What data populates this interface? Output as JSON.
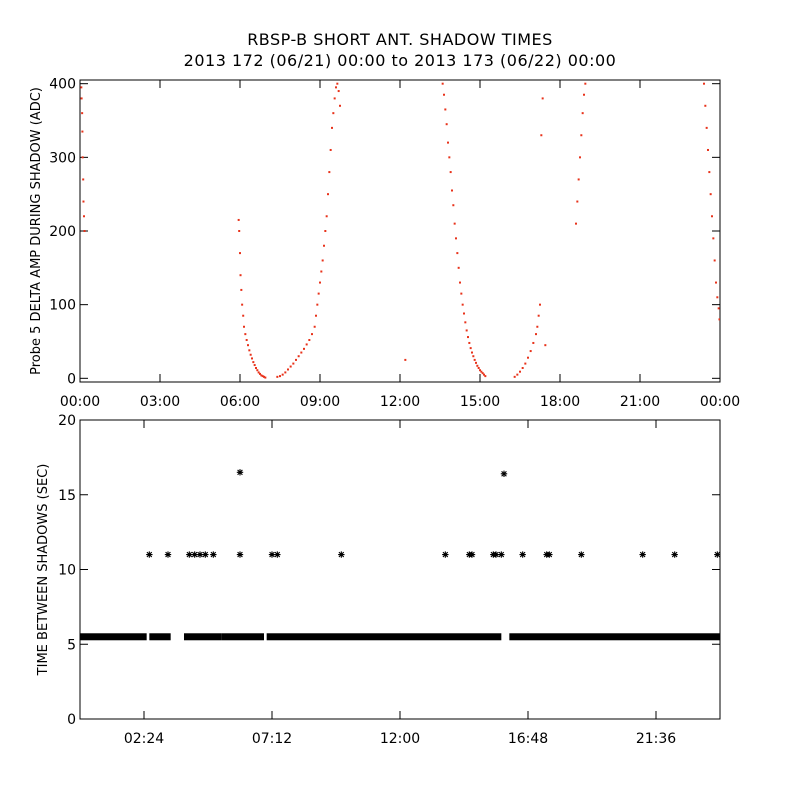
{
  "figure": {
    "title_line1": "RBSP-B SHORT ANT. SHADOW TIMES",
    "title_line2": "2013 172 (06/21) 00:00 to 2013 173 (06/22) 00:00"
  },
  "colors": {
    "panel1_points": "#e8321a",
    "panel2_points": "#000000",
    "axes": "#000000",
    "background": "#ffffff"
  },
  "chart_data": [
    {
      "type": "scatter",
      "ylabel": "Probe 5 DELTA AMP DURING SHADOW (ADC)",
      "xlabel": "",
      "x_unit": "hours",
      "xlim": [
        0,
        24
      ],
      "ylim": [
        -5,
        405
      ],
      "x_ticks": [
        0,
        3,
        6,
        9,
        12,
        15,
        18,
        21,
        24
      ],
      "x_tick_labels": [
        "00:00",
        "03:00",
        "06:00",
        "09:00",
        "12:00",
        "15:00",
        "18:00",
        "21:00",
        "00:00"
      ],
      "y_ticks": [
        0,
        100,
        200,
        300,
        400
      ],
      "y_tick_labels": [
        "0",
        "100",
        "200",
        "300",
        "400"
      ],
      "series": [
        {
          "points": [
            [
              0.05,
              395
            ],
            [
              0.06,
              380
            ],
            [
              0.08,
              360
            ],
            [
              0.09,
              335
            ],
            [
              0.1,
              300
            ],
            [
              0.12,
              270
            ],
            [
              0.13,
              240
            ],
            [
              0.15,
              220
            ],
            [
              0.17,
              200
            ],
            [
              5.95,
              215
            ],
            [
              5.97,
              200
            ],
            [
              6.0,
              170
            ],
            [
              6.02,
              140
            ],
            [
              6.05,
              120
            ],
            [
              6.08,
              100
            ],
            [
              6.12,
              85
            ],
            [
              6.15,
              70
            ],
            [
              6.2,
              60
            ],
            [
              6.25,
              52
            ],
            [
              6.3,
              45
            ],
            [
              6.35,
              38
            ],
            [
              6.4,
              32
            ],
            [
              6.45,
              27
            ],
            [
              6.5,
              22
            ],
            [
              6.55,
              18
            ],
            [
              6.6,
              14
            ],
            [
              6.65,
              11
            ],
            [
              6.7,
              8
            ],
            [
              6.75,
              6
            ],
            [
              6.8,
              4
            ],
            [
              6.85,
              3
            ],
            [
              6.9,
              2
            ],
            [
              6.95,
              1
            ],
            [
              7.4,
              2
            ],
            [
              7.5,
              3
            ],
            [
              7.6,
              5
            ],
            [
              7.7,
              8
            ],
            [
              7.8,
              12
            ],
            [
              7.9,
              16
            ],
            [
              8.0,
              20
            ],
            [
              8.1,
              25
            ],
            [
              8.2,
              30
            ],
            [
              8.3,
              35
            ],
            [
              8.4,
              40
            ],
            [
              8.5,
              46
            ],
            [
              8.6,
              52
            ],
            [
              8.7,
              60
            ],
            [
              8.8,
              70
            ],
            [
              8.85,
              85
            ],
            [
              8.9,
              100
            ],
            [
              8.95,
              115
            ],
            [
              9.0,
              130
            ],
            [
              9.05,
              145
            ],
            [
              9.1,
              160
            ],
            [
              9.15,
              180
            ],
            [
              9.2,
              200
            ],
            [
              9.25,
              220
            ],
            [
              9.3,
              250
            ],
            [
              9.35,
              280
            ],
            [
              9.4,
              310
            ],
            [
              9.45,
              340
            ],
            [
              9.5,
              360
            ],
            [
              9.55,
              380
            ],
            [
              9.6,
              395
            ],
            [
              9.65,
              400
            ],
            [
              9.7,
              390
            ],
            [
              9.75,
              370
            ],
            [
              12.2,
              25
            ],
            [
              13.6,
              400
            ],
            [
              13.65,
              385
            ],
            [
              13.7,
              365
            ],
            [
              13.75,
              345
            ],
            [
              13.8,
              320
            ],
            [
              13.85,
              300
            ],
            [
              13.9,
              280
            ],
            [
              13.95,
              255
            ],
            [
              14.0,
              235
            ],
            [
              14.05,
              210
            ],
            [
              14.1,
              190
            ],
            [
              14.15,
              170
            ],
            [
              14.2,
              150
            ],
            [
              14.25,
              130
            ],
            [
              14.3,
              115
            ],
            [
              14.35,
              100
            ],
            [
              14.4,
              88
            ],
            [
              14.45,
              76
            ],
            [
              14.5,
              65
            ],
            [
              14.55,
              56
            ],
            [
              14.6,
              48
            ],
            [
              14.65,
              41
            ],
            [
              14.7,
              35
            ],
            [
              14.75,
              30
            ],
            [
              14.8,
              25
            ],
            [
              14.85,
              21
            ],
            [
              14.9,
              17
            ],
            [
              14.95,
              14
            ],
            [
              15.0,
              11
            ],
            [
              15.05,
              9
            ],
            [
              15.1,
              7
            ],
            [
              15.15,
              5
            ],
            [
              15.2,
              3
            ],
            [
              16.3,
              2
            ],
            [
              16.4,
              5
            ],
            [
              16.5,
              9
            ],
            [
              16.6,
              14
            ],
            [
              16.7,
              20
            ],
            [
              16.8,
              28
            ],
            [
              16.9,
              37
            ],
            [
              17.0,
              48
            ],
            [
              17.1,
              60
            ],
            [
              17.15,
              70
            ],
            [
              17.2,
              85
            ],
            [
              17.25,
              100
            ],
            [
              17.3,
              330
            ],
            [
              17.35,
              380
            ],
            [
              17.45,
              45
            ],
            [
              18.6,
              210
            ],
            [
              18.65,
              240
            ],
            [
              18.7,
              270
            ],
            [
              18.75,
              300
            ],
            [
              18.8,
              330
            ],
            [
              18.85,
              360
            ],
            [
              18.9,
              385
            ],
            [
              18.95,
              400
            ],
            [
              23.4,
              400
            ],
            [
              23.45,
              370
            ],
            [
              23.5,
              340
            ],
            [
              23.55,
              310
            ],
            [
              23.6,
              280
            ],
            [
              23.65,
              250
            ],
            [
              23.7,
              220
            ],
            [
              23.75,
              190
            ],
            [
              23.8,
              160
            ],
            [
              23.85,
              130
            ],
            [
              23.9,
              110
            ],
            [
              23.95,
              95
            ],
            [
              23.98,
              80
            ]
          ]
        }
      ],
      "grid": false,
      "legend": "none"
    },
    {
      "type": "scatter",
      "ylabel": "TIME BETWEEN SHADOWS (SEC)",
      "xlabel": "",
      "x_unit": "hours",
      "xlim": [
        0,
        24
      ],
      "ylim": [
        0,
        20
      ],
      "x_ticks": [
        2.4,
        7.2,
        12.0,
        16.8,
        21.6
      ],
      "x_tick_labels": [
        "02:24",
        "07:12",
        "12:00",
        "16:48",
        "21:36"
      ],
      "y_ticks": [
        0,
        5,
        10,
        15,
        20
      ],
      "y_tick_labels": [
        "0",
        "5",
        "10",
        "15",
        "20"
      ],
      "baseline": {
        "value": 5.5,
        "segments": [
          [
            0.0,
            2.5
          ],
          [
            2.6,
            3.4
          ],
          [
            3.9,
            5.3
          ],
          [
            5.3,
            6.9
          ],
          [
            7.0,
            15.8
          ],
          [
            16.1,
            24.0
          ]
        ]
      },
      "series": [
        {
          "points": [
            [
              2.6,
              11
            ],
            [
              3.3,
              11
            ],
            [
              4.1,
              11
            ],
            [
              4.3,
              11
            ],
            [
              4.5,
              11
            ],
            [
              4.7,
              11
            ],
            [
              5.0,
              11
            ],
            [
              6.0,
              16.5
            ],
            [
              6.0,
              11
            ],
            [
              7.2,
              11
            ],
            [
              7.4,
              11
            ],
            [
              9.8,
              11
            ],
            [
              13.7,
              11
            ],
            [
              14.6,
              11
            ],
            [
              14.7,
              11
            ],
            [
              15.5,
              11
            ],
            [
              15.6,
              11
            ],
            [
              15.8,
              11
            ],
            [
              15.9,
              16.4
            ],
            [
              16.6,
              11
            ],
            [
              17.5,
              11
            ],
            [
              17.6,
              11
            ],
            [
              18.8,
              11
            ],
            [
              21.1,
              11
            ],
            [
              22.3,
              11
            ],
            [
              23.9,
              11
            ]
          ]
        }
      ],
      "grid": false,
      "legend": "none"
    }
  ]
}
